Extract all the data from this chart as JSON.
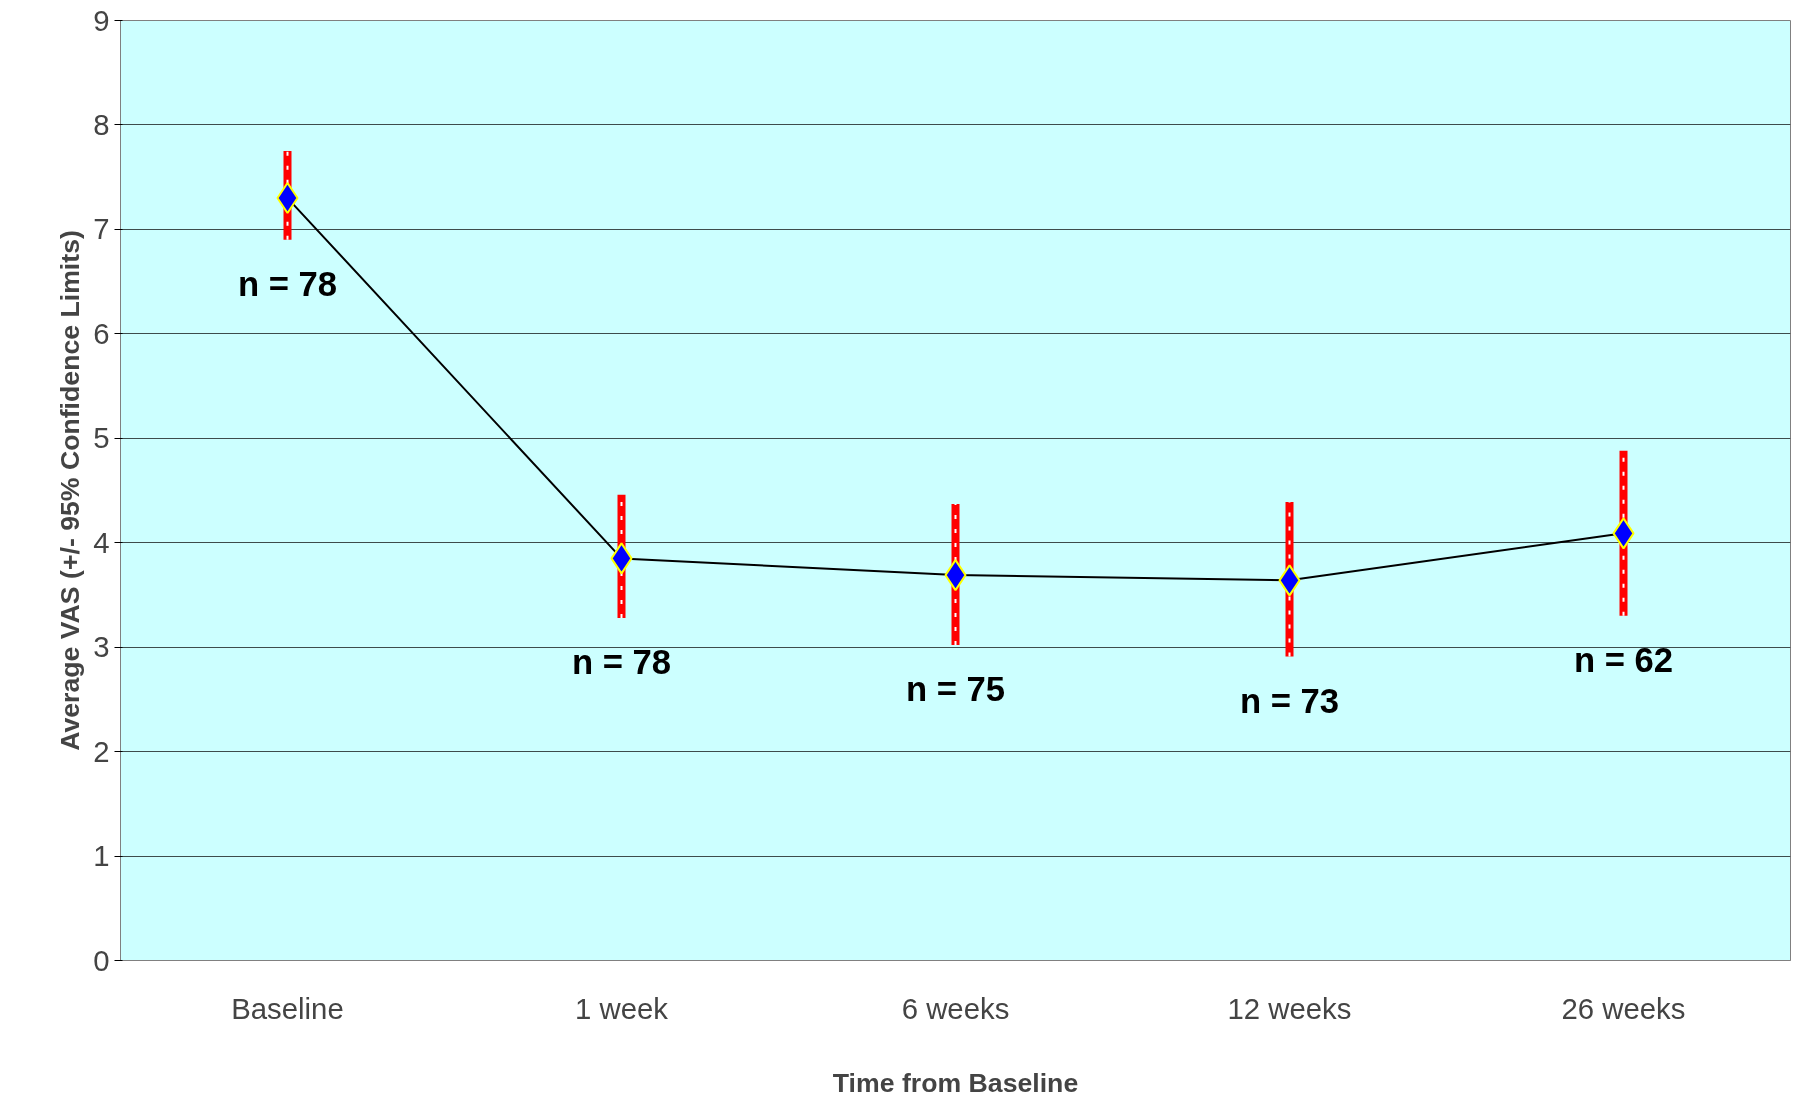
{
  "chart_data": {
    "type": "line",
    "xlabel": "Time from Baseline",
    "ylabel": "Average VAS (+/- 95% Confidence Limits)",
    "categories": [
      "Baseline",
      "1 week",
      "6 weeks",
      "12 weeks",
      "26 weeks"
    ],
    "series": [
      {
        "color": "#0000ff",
        "values": [
          7.3,
          3.85,
          3.69,
          3.64,
          4.09
        ],
        "errors": [
          [
            6.9,
            7.75
          ],
          [
            3.28,
            4.46
          ],
          [
            3.02,
            4.37
          ],
          [
            2.91,
            4.39
          ],
          [
            3.3,
            4.88
          ]
        ]
      }
    ],
    "ylim": [
      0,
      9
    ],
    "yticks": [
      0,
      1,
      2,
      3,
      4,
      5,
      6,
      7,
      8,
      9
    ],
    "grid": "y",
    "marker": "diamond",
    "line_style": "solid",
    "annotations": [
      {
        "text": "n = 78",
        "x": "Baseline",
        "y": 6.9
      },
      {
        "text": "n = 78",
        "x": "1 week",
        "y": 3.28
      },
      {
        "text": "n = 75",
        "x": "6 weeks",
        "y": 3.02
      },
      {
        "text": "n = 73",
        "x": "12 weeks",
        "y": 2.91
      },
      {
        "text": "n = 62",
        "x": "26 weeks",
        "y": 3.3
      }
    ]
  }
}
